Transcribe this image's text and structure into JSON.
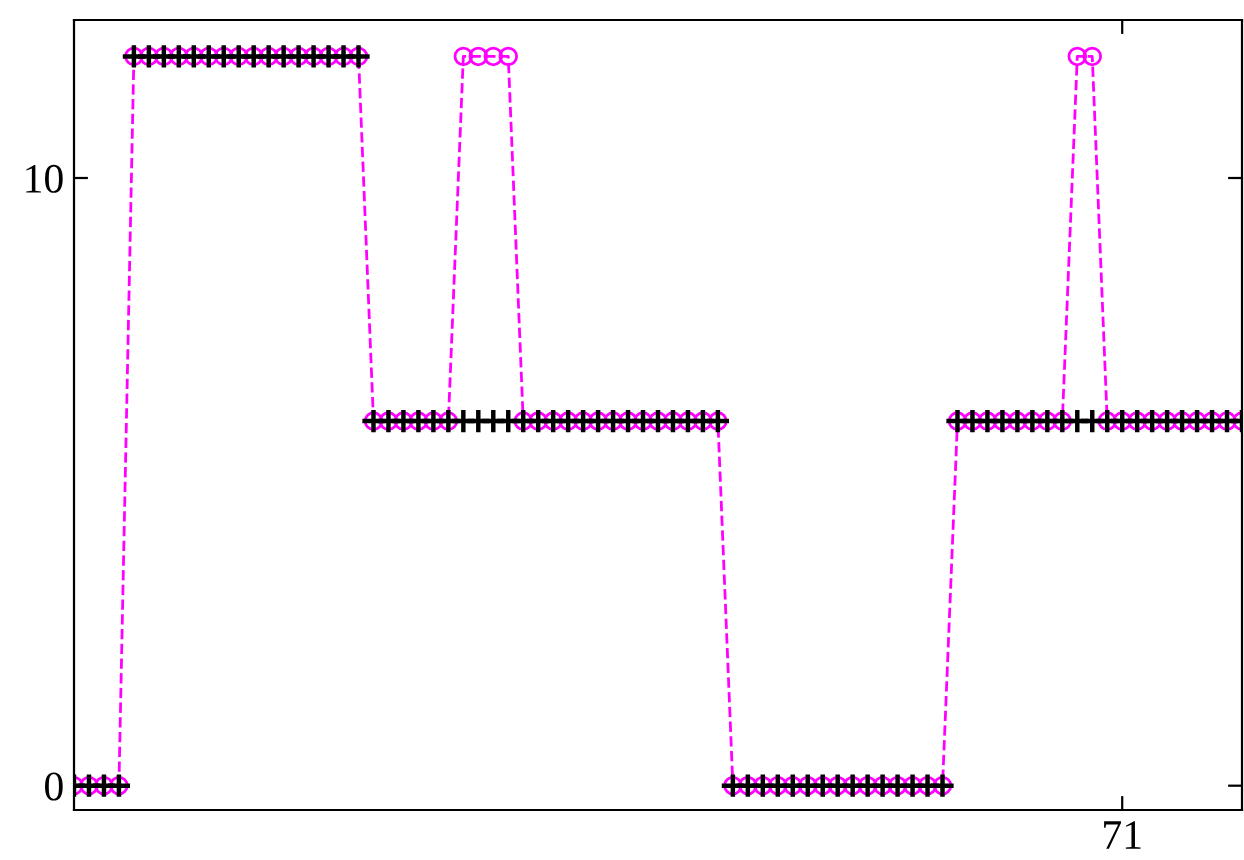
{
  "chart_data": {
    "type": "line",
    "categories": [
      null,
      null,
      null,
      null,
      null,
      null,
      null,
      null,
      null,
      null,
      null,
      null,
      null,
      null,
      null,
      null,
      null,
      null,
      null,
      null,
      null,
      null,
      null,
      null,
      null,
      null,
      null,
      null,
      null,
      null,
      null,
      null,
      null,
      null,
      null,
      null,
      null,
      null,
      null,
      null,
      null,
      null,
      null,
      null,
      null,
      null,
      null,
      null,
      null,
      null,
      null,
      null,
      null,
      null,
      null,
      null,
      null,
      null,
      null,
      null,
      null,
      null,
      null,
      null,
      null,
      null,
      null,
      null,
      null,
      null,
      "71",
      null,
      null,
      null,
      null,
      null,
      null,
      null,
      null
    ],
    "series": [
      {
        "color": "#ff00ff",
        "marker": "circle",
        "line_style": "dashed",
        "values": [
          0,
          0,
          0,
          0,
          12,
          12,
          12,
          12,
          12,
          12,
          12,
          12,
          12,
          12,
          12,
          12,
          12,
          12,
          12,
          12,
          6,
          6,
          6,
          6,
          6,
          6,
          12,
          12,
          12,
          12,
          6,
          6,
          6,
          6,
          6,
          6,
          6,
          6,
          6,
          6,
          6,
          6,
          6,
          6,
          0,
          0,
          0,
          0,
          0,
          0,
          0,
          0,
          0,
          0,
          0,
          0,
          0,
          0,
          0,
          6,
          6,
          6,
          6,
          6,
          6,
          6,
          6,
          12,
          12,
          6,
          6,
          6,
          6,
          6,
          6,
          6,
          6,
          6,
          6
        ]
      },
      {
        "type": "scatter",
        "color": "#000000",
        "marker": "cross",
        "values": [
          0,
          0,
          0,
          0,
          12,
          12,
          12,
          12,
          12,
          12,
          12,
          12,
          12,
          12,
          12,
          12,
          12,
          12,
          12,
          12,
          6,
          6,
          6,
          6,
          6,
          6,
          6,
          6,
          6,
          6,
          6,
          6,
          6,
          6,
          6,
          6,
          6,
          6,
          6,
          6,
          6,
          6,
          6,
          6,
          0,
          0,
          0,
          0,
          0,
          0,
          0,
          0,
          0,
          0,
          0,
          0,
          0,
          0,
          0,
          6,
          6,
          6,
          6,
          6,
          6,
          6,
          6,
          6,
          6,
          6,
          6,
          6,
          6,
          6,
          6,
          6,
          6,
          6,
          6
        ]
      }
    ],
    "ylim": [
      -0.4,
      12.6
    ],
    "yticks": [
      0,
      10
    ],
    "grid": false,
    "legend": false
  }
}
